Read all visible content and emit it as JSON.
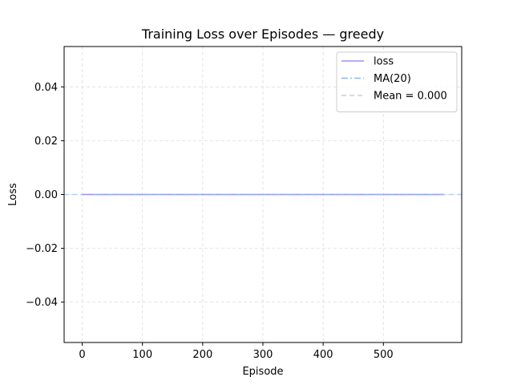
{
  "chart_data": {
    "type": "line",
    "title": "Training Loss over Episodes — greedy",
    "xlabel": "Episode",
    "ylabel": "Loss",
    "xlim": [
      -30,
      630
    ],
    "ylim": [
      -0.055,
      0.055
    ],
    "xticks": [
      0,
      100,
      200,
      300,
      400,
      500
    ],
    "xtick_labels": [
      "0",
      "100",
      "200",
      "300",
      "400",
      "500"
    ],
    "yticks": [
      0.04,
      0.02,
      0.0,
      -0.02,
      -0.04
    ],
    "ytick_labels": [
      "0.04",
      "0.02",
      "0.00",
      "−0.02",
      "−0.04"
    ],
    "grid": true,
    "legend_position": "top-right",
    "series": [
      {
        "name": "loss",
        "style": "solid",
        "color": "#a48ff0",
        "x": [
          0,
          600
        ],
        "values": [
          0,
          0
        ]
      },
      {
        "name": "MA(20)",
        "style": "dashdot",
        "color": "#8fb8ee",
        "x": [
          19,
          600
        ],
        "values": [
          0,
          0
        ]
      }
    ],
    "hlines": [
      {
        "name": "Mean = 0.000",
        "style": "dashed",
        "color": "#b7d3f5",
        "value": 0.0
      }
    ]
  }
}
